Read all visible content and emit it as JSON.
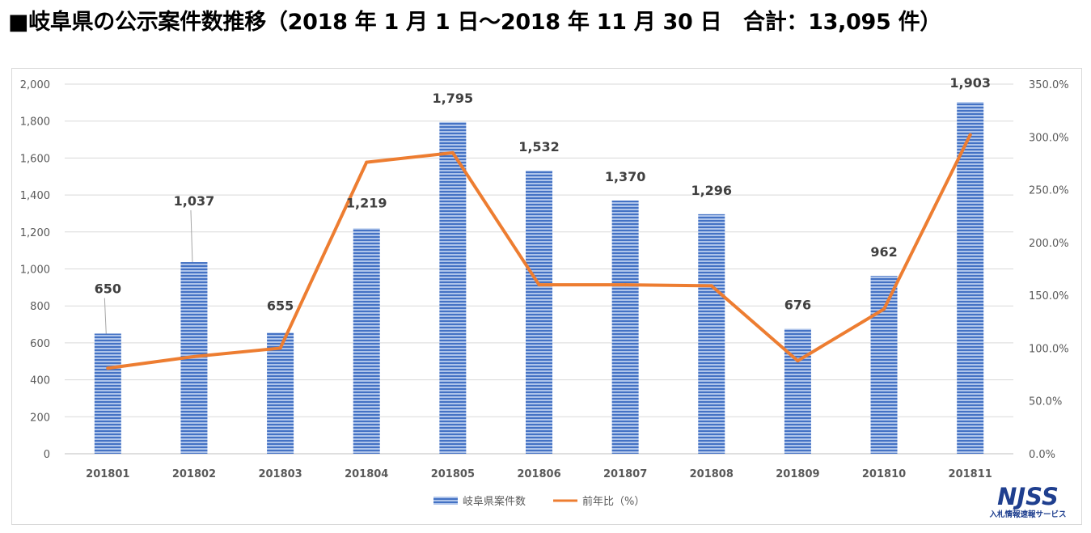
{
  "title": "■岐阜県の公示案件数推移（2018 年 1 月 1 日～2018 年 11 月 30 日　合計：13,095 件）",
  "colors": {
    "bar": "#4472c4",
    "line": "#ed7d31",
    "grid": "#d9d9d9",
    "text": "#595959"
  },
  "logo": {
    "mark": "NJSS",
    "subtitle": "入札情報速報サービス"
  },
  "chart_data": {
    "type": "bar",
    "categories": [
      "201801",
      "201802",
      "201803",
      "201804",
      "201805",
      "201806",
      "201807",
      "201808",
      "201809",
      "201810",
      "201811"
    ],
    "series": [
      {
        "name": "岐阜県案件数",
        "type": "bar",
        "axis": "left",
        "values": [
          650,
          1037,
          655,
          1219,
          1795,
          1532,
          1370,
          1296,
          676,
          962,
          1903
        ],
        "labels": [
          "650",
          "1,037",
          "655",
          "1,219",
          "1,795",
          "1,532",
          "1,370",
          "1,296",
          "676",
          "962",
          "1,903"
        ]
      },
      {
        "name": "前年比（%）",
        "type": "line",
        "axis": "right",
        "values": [
          81,
          92,
          100,
          276,
          285,
          160,
          160,
          159,
          88,
          137,
          302
        ]
      }
    ],
    "y_left": {
      "min": 0,
      "max": 2000,
      "step": 200,
      "tick_labels": [
        "0",
        "200",
        "400",
        "600",
        "800",
        "1,000",
        "1,200",
        "1,400",
        "1,600",
        "1,800",
        "2,000"
      ]
    },
    "y_right": {
      "min": 0,
      "max": 350,
      "step": 50,
      "tick_labels": [
        "0.0%",
        "50.0%",
        "100.0%",
        "150.0%",
        "200.0%",
        "250.0%",
        "300.0%",
        "350.0%"
      ]
    },
    "grid": true,
    "legend": "bottom"
  }
}
